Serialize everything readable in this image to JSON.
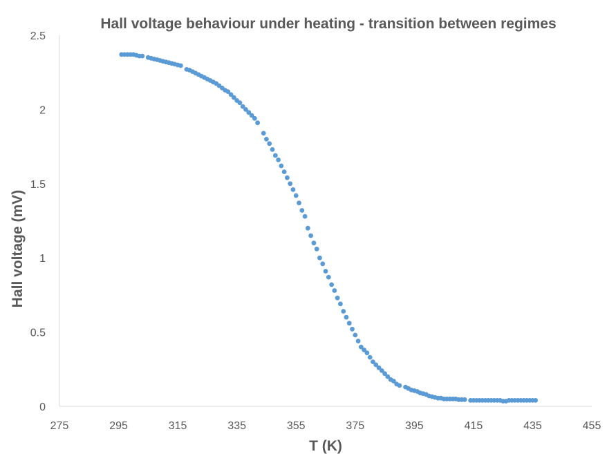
{
  "chart_data": {
    "type": "scatter",
    "title": "Hall voltage behaviour under heating - transition between regimes",
    "xlabel": "T (K)",
    "ylabel": "Hall voltage (mV)",
    "xlim": [
      275,
      455
    ],
    "ylim": [
      0,
      2.5
    ],
    "x_ticks": [
      "275",
      "295",
      "315",
      "335",
      "355",
      "375",
      "395",
      "415",
      "435",
      "455"
    ],
    "y_ticks": [
      "0",
      "0.5",
      "1",
      "1.5",
      "2",
      "2.5"
    ],
    "grid": false,
    "legend": "none",
    "marker_color": "#5B9BD5",
    "series": [
      {
        "x": [
          296.0,
          297.0,
          298.0,
          299.0,
          300.0,
          301.0,
          302.0,
          303.0,
          305.0,
          306.0,
          307.0,
          308.0,
          309.0,
          310.0,
          311.0,
          312.0,
          313.0,
          314.0,
          315.0,
          316.0,
          318.0,
          319.0,
          320.0,
          321.0,
          322.0,
          323.0,
          324.0,
          325.0,
          326.0,
          327.0,
          328.0,
          329.0,
          330.0,
          331.0,
          332.0,
          333.0,
          334.0,
          335.0,
          336.0,
          337.0,
          338.0,
          339.0,
          340.0,
          341.0,
          342.0,
          344.0,
          345.0,
          346.0,
          347.0,
          348.0,
          349.0,
          350.0,
          351.0,
          352.0,
          353.0,
          354.0,
          355.0,
          356.0,
          357.0,
          358.0,
          359.0,
          360.0,
          361.0,
          362.0,
          363.0,
          364.0,
          365.0,
          366.0,
          367.0,
          368.0,
          369.0,
          370.0,
          371.0,
          372.0,
          373.0,
          374.0,
          375.0,
          376.0,
          377.0,
          378.0,
          379.0,
          380.0,
          381.0,
          382.0,
          383.0,
          384.0,
          385.0,
          386.0,
          387.0,
          388.0,
          389.0,
          390.0,
          392.0,
          393.0,
          394.0,
          395.0,
          396.0,
          397.0,
          398.0,
          399.0,
          400.0,
          401.0,
          402.0,
          403.0,
          404.0,
          405.0,
          406.0,
          407.0,
          408.0,
          409.0,
          410.0,
          411.0,
          412.0,
          414.0,
          415.0,
          416.0,
          417.0,
          418.0,
          419.0,
          420.0,
          421.0,
          422.0,
          423.0,
          424.0,
          425.0,
          426.0,
          427.0,
          428.0,
          429.0,
          430.0,
          431.0,
          432.0,
          433.0,
          434.0,
          435.0,
          436.0
        ],
        "y": [
          2.37,
          2.37,
          2.37,
          2.37,
          2.37,
          2.365,
          2.36,
          2.36,
          2.35,
          2.345,
          2.34,
          2.335,
          2.33,
          2.325,
          2.32,
          2.315,
          2.31,
          2.305,
          2.3,
          2.295,
          2.27,
          2.265,
          2.255,
          2.245,
          2.235,
          2.225,
          2.215,
          2.205,
          2.195,
          2.185,
          2.175,
          2.16,
          2.145,
          2.13,
          2.12,
          2.1,
          2.08,
          2.06,
          2.045,
          2.02,
          2.0,
          1.98,
          1.96,
          1.94,
          1.91,
          1.84,
          1.8,
          1.77,
          1.73,
          1.69,
          1.66,
          1.62,
          1.58,
          1.54,
          1.5,
          1.46,
          1.42,
          1.37,
          1.32,
          1.28,
          1.2,
          1.15,
          1.1,
          1.06,
          1.0,
          0.96,
          0.91,
          0.87,
          0.82,
          0.78,
          0.73,
          0.69,
          0.64,
          0.6,
          0.56,
          0.52,
          0.48,
          0.44,
          0.4,
          0.38,
          0.36,
          0.33,
          0.3,
          0.28,
          0.26,
          0.24,
          0.22,
          0.2,
          0.18,
          0.17,
          0.15,
          0.14,
          0.13,
          0.12,
          0.11,
          0.105,
          0.1,
          0.09,
          0.085,
          0.08,
          0.07,
          0.065,
          0.06,
          0.055,
          0.055,
          0.05,
          0.05,
          0.05,
          0.05,
          0.05,
          0.045,
          0.045,
          0.045,
          0.04,
          0.04,
          0.04,
          0.04,
          0.04,
          0.04,
          0.04,
          0.04,
          0.04,
          0.04,
          0.04,
          0.035,
          0.035,
          0.04,
          0.04,
          0.04,
          0.04,
          0.04,
          0.04,
          0.04,
          0.04,
          0.04,
          0.04
        ]
      }
    ]
  }
}
